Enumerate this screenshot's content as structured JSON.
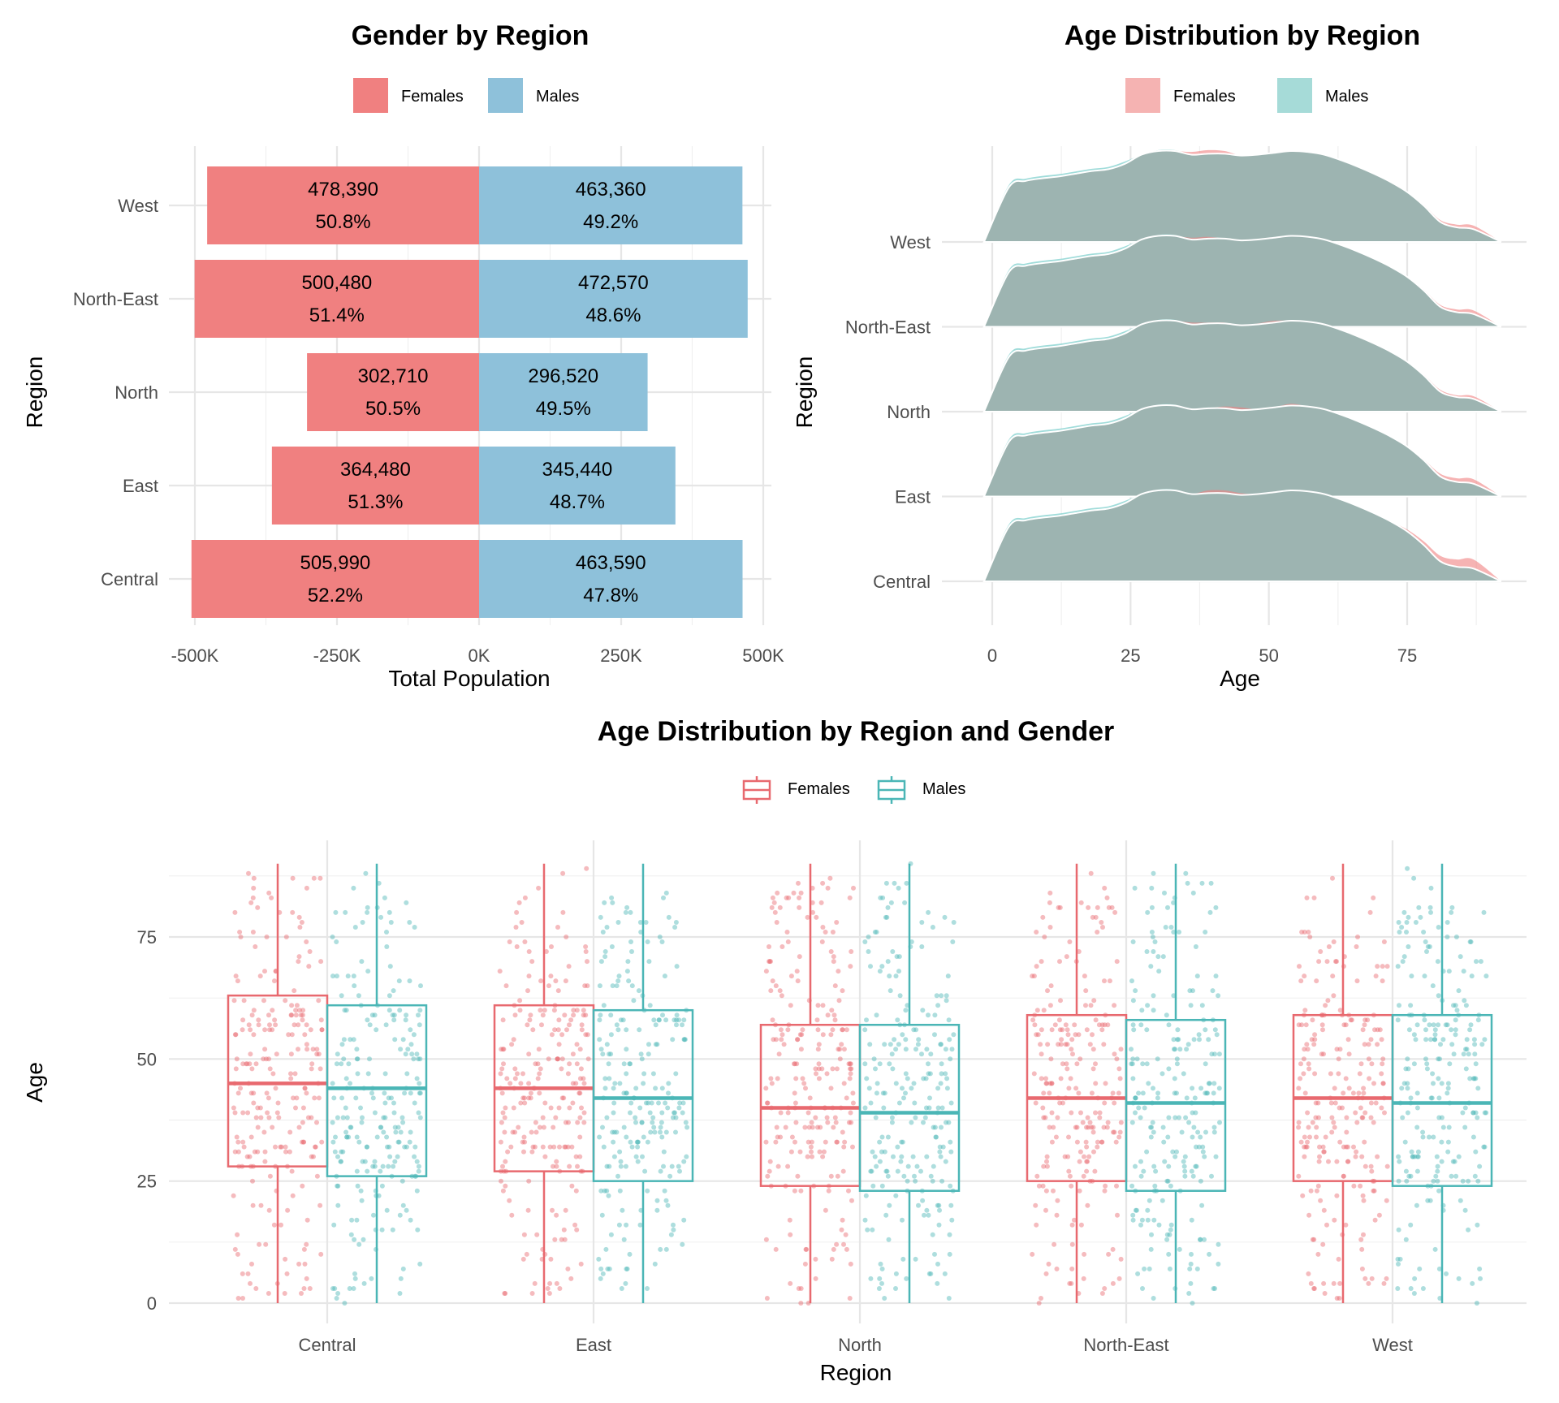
{
  "colors": {
    "female": "#f08080",
    "male": "#8ec1da",
    "female_line": "#e8696f",
    "male_line": "#4bb6b6",
    "ridge": "#9db4b1"
  },
  "chart_data": [
    {
      "type": "bar",
      "title": "Gender by Region",
      "xlabel": "Total Population",
      "ylabel": "Region",
      "legend_position": "top",
      "categories": [
        "West",
        "North-East",
        "North",
        "East",
        "Central"
      ],
      "xlim": [
        -500000,
        500000
      ],
      "x_ticks": [
        "-500K",
        "-250K",
        "0K",
        "250K",
        "500K"
      ],
      "series": [
        {
          "name": "Females",
          "values": [
            -478390,
            -500480,
            -302710,
            -364480,
            -505990
          ],
          "labels": [
            "478,390",
            "500,480",
            "302,710",
            "364,480",
            "505,990"
          ],
          "percents": [
            "50.8%",
            "51.4%",
            "50.5%",
            "51.3%",
            "52.2%"
          ]
        },
        {
          "name": "Males",
          "values": [
            463360,
            472570,
            296520,
            345440,
            463590
          ],
          "labels": [
            "463,360",
            "472,570",
            "296,520",
            "345,440",
            "463,590"
          ],
          "percents": [
            "49.2%",
            "48.6%",
            "49.5%",
            "48.7%",
            "47.8%"
          ]
        }
      ]
    },
    {
      "type": "area",
      "title": "Age Distribution by Region",
      "xlabel": "Age",
      "ylabel": "Region",
      "legend_position": "top",
      "legend": [
        "Females",
        "Males"
      ],
      "categories": [
        "West",
        "North-East",
        "North",
        "East",
        "Central"
      ],
      "xlim": [
        0,
        90
      ],
      "x_ticks": [
        "0",
        "25",
        "50",
        "75"
      ],
      "x": [
        0,
        3,
        6,
        9,
        12,
        15,
        18,
        21,
        24,
        27,
        30,
        33,
        36,
        39,
        42,
        45,
        48,
        51,
        54,
        57,
        60,
        63,
        66,
        69,
        72,
        75,
        78,
        81,
        84,
        87,
        90
      ],
      "density_reference": [
        0,
        0.6,
        0.67,
        0.7,
        0.72,
        0.75,
        0.78,
        0.8,
        0.86,
        0.96,
        1.0,
        1.0,
        0.96,
        0.97,
        0.97,
        0.95,
        0.96,
        0.98,
        1.0,
        0.99,
        0.96,
        0.9,
        0.83,
        0.75,
        0.66,
        0.55,
        0.4,
        0.22,
        0.16,
        0.14,
        0
      ],
      "female_offset": {
        "West": [
          0,
          0,
          0,
          0,
          0,
          0,
          0,
          0,
          0,
          0,
          0,
          0,
          0.03,
          0.04,
          0.03,
          0,
          0,
          0,
          0,
          0,
          0,
          0,
          0,
          0,
          0,
          0,
          0.01,
          0.02,
          0.03,
          0.04,
          0
        ],
        "North-East": [
          0,
          0,
          0,
          0,
          0,
          0,
          0,
          0,
          0,
          0,
          0,
          0,
          0.02,
          0.02,
          0,
          0,
          0,
          0,
          0,
          0,
          0,
          0,
          0,
          0,
          0,
          0,
          0.01,
          0.02,
          0.03,
          0.04,
          0
        ],
        "North": [
          0,
          0,
          0,
          0,
          0,
          0,
          0,
          0,
          0,
          0,
          0,
          0,
          0.02,
          0.01,
          0.01,
          0,
          0.01,
          0.02,
          0,
          0,
          0,
          0,
          0,
          0,
          0,
          0,
          0.01,
          0.02,
          0.02,
          0.03,
          0
        ],
        "East": [
          0,
          0,
          0,
          0,
          0,
          0,
          0,
          0,
          0,
          0,
          0,
          0,
          0,
          0,
          0.02,
          0.03,
          0,
          0,
          0.02,
          0,
          0,
          0,
          0,
          0,
          0,
          0,
          0.01,
          0.03,
          0.04,
          0.05,
          0
        ],
        "Central": [
          0,
          0,
          0,
          0,
          0,
          0,
          0,
          0,
          0,
          0,
          0,
          0,
          0,
          0.03,
          0.03,
          0.02,
          0,
          0,
          0,
          0,
          0,
          0,
          0,
          0,
          0,
          0.02,
          0.04,
          0.06,
          0.08,
          0.1,
          0
        ]
      }
    },
    {
      "type": "box",
      "title": "Age Distribution by Region and Gender",
      "xlabel": "Region",
      "ylabel": "Age",
      "legend_position": "top",
      "legend": [
        "Females",
        "Males"
      ],
      "categories": [
        "Central",
        "East",
        "North",
        "North-East",
        "West"
      ],
      "ylim": [
        0,
        90
      ],
      "y_ticks": [
        0,
        25,
        50,
        75
      ],
      "series": [
        {
          "name": "Females",
          "boxes": [
            {
              "min": 0,
              "q1": 28,
              "median": 45,
              "q3": 63,
              "max": 90
            },
            {
              "min": 0,
              "q1": 27,
              "median": 44,
              "q3": 61,
              "max": 90
            },
            {
              "min": 0,
              "q1": 24,
              "median": 40,
              "q3": 57,
              "max": 90
            },
            {
              "min": 0,
              "q1": 25,
              "median": 42,
              "q3": 59,
              "max": 90
            },
            {
              "min": 0,
              "q1": 25,
              "median": 42,
              "q3": 59,
              "max": 90
            }
          ]
        },
        {
          "name": "Males",
          "boxes": [
            {
              "min": 0,
              "q1": 26,
              "median": 44,
              "q3": 61,
              "max": 90
            },
            {
              "min": 0,
              "q1": 25,
              "median": 42,
              "q3": 60,
              "max": 90
            },
            {
              "min": 0,
              "q1": 23,
              "median": 39,
              "q3": 57,
              "max": 90
            },
            {
              "min": 0,
              "q1": 23,
              "median": 41,
              "q3": 58,
              "max": 90
            },
            {
              "min": 0,
              "q1": 24,
              "median": 41,
              "q3": 59,
              "max": 90
            }
          ]
        }
      ],
      "jitter_points_per_box": 230
    }
  ]
}
